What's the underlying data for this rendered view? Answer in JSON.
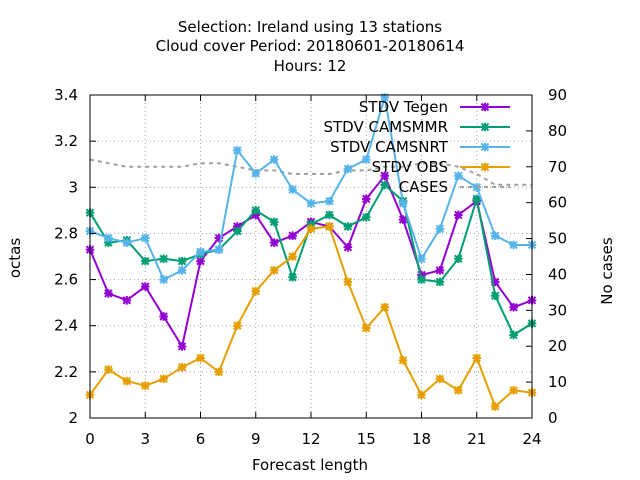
{
  "chart_data": {
    "type": "line",
    "title_lines": [
      "Selection: Ireland using    13 stations",
      "Cloud cover   Period: 20180601-20180614",
      "Hours:  12"
    ],
    "xlabel": "Forecast length",
    "ylabel": "octas",
    "y2label": "No cases",
    "xlim": [
      0,
      24
    ],
    "ylim": [
      2,
      3.4
    ],
    "y2lim": [
      0,
      90
    ],
    "xticks": [
      "0",
      "3",
      "6",
      "9",
      "12",
      "15",
      "18",
      "21",
      "24"
    ],
    "yticks": [
      "2",
      "2.2",
      "2.4",
      "2.6",
      "2.8",
      "3",
      "3.2",
      "3.4"
    ],
    "y2ticks": [
      "0",
      "10",
      "20",
      "30",
      "40",
      "50",
      "60",
      "70",
      "80",
      "90"
    ],
    "grid": true,
    "legend_position": "top-right",
    "x": [
      0,
      1,
      2,
      3,
      4,
      5,
      6,
      7,
      8,
      9,
      10,
      11,
      12,
      13,
      14,
      15,
      16,
      17,
      18,
      19,
      20,
      21,
      22,
      23,
      24
    ],
    "series": [
      {
        "name": "STDV Tegen",
        "color": "#9400d3",
        "axis": "y",
        "values": [
          2.73,
          2.54,
          2.51,
          2.57,
          2.44,
          2.31,
          2.68,
          2.78,
          2.83,
          2.88,
          2.76,
          2.79,
          2.85,
          2.83,
          2.74,
          2.95,
          3.05,
          2.86,
          2.62,
          2.64,
          2.88,
          2.94,
          2.59,
          2.48,
          2.51
        ]
      },
      {
        "name": "STDV CAMSMMR",
        "color": "#009e73",
        "axis": "y",
        "values": [
          2.89,
          2.76,
          2.77,
          2.68,
          2.69,
          2.68,
          2.71,
          2.73,
          2.81,
          2.9,
          2.85,
          2.61,
          2.84,
          2.88,
          2.83,
          2.87,
          3.01,
          2.94,
          2.6,
          2.59,
          2.69,
          2.95,
          2.53,
          2.36,
          2.41
        ]
      },
      {
        "name": "STDV CAMSNRT",
        "color": "#56b4e9",
        "axis": "y",
        "values": [
          2.81,
          2.78,
          2.76,
          2.78,
          2.6,
          2.64,
          2.72,
          2.73,
          3.16,
          3.06,
          3.12,
          2.99,
          2.93,
          2.94,
          3.08,
          3.12,
          3.39,
          2.93,
          2.69,
          2.82,
          3.05,
          3.0,
          2.79,
          2.75,
          2.75
        ]
      },
      {
        "name": "STDV OBS",
        "color": "#e69f00",
        "axis": "y",
        "values": [
          2.1,
          2.21,
          2.16,
          2.14,
          2.17,
          2.22,
          2.26,
          2.2,
          2.4,
          2.55,
          2.64,
          2.7,
          2.82,
          2.83,
          2.59,
          2.39,
          2.48,
          2.25,
          2.1,
          2.17,
          2.12,
          2.26,
          2.05,
          2.12,
          2.11
        ]
      },
      {
        "name": "CASES",
        "color": "#a0a0a0",
        "axis": "y2",
        "dashed": true,
        "values": [
          72,
          71,
          70,
          70,
          70,
          70,
          71,
          71,
          70,
          69,
          69,
          68,
          68,
          68,
          69,
          69,
          70,
          70,
          71,
          71,
          70,
          68,
          65,
          65,
          65
        ]
      }
    ]
  }
}
